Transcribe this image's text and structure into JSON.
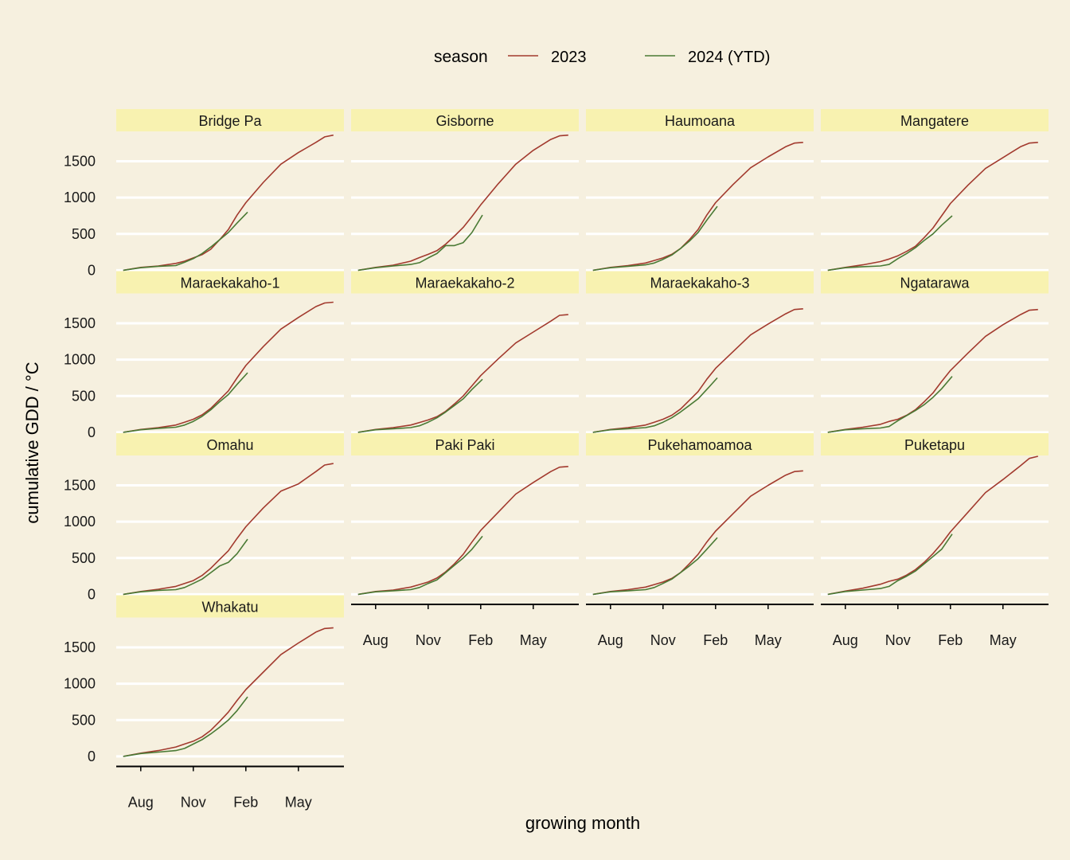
{
  "chart_data": {
    "type": "line",
    "title": "",
    "xlabel": "growing month",
    "ylabel": "cumulative GDD / °C",
    "legend": {
      "title": "season",
      "position": "top",
      "entries": [
        "2023",
        "2024 (YTD)"
      ]
    },
    "colors": {
      "2023": "#a23a2e",
      "2024 (YTD)": "#4a7a35",
      "background": "#f6f0df",
      "strip": "#f8f2b0",
      "grid": "#ffffff"
    },
    "grid": true,
    "x_ticks": [
      "Aug",
      "Nov",
      "Feb",
      "May"
    ],
    "y_ticks": [
      0,
      500,
      1000,
      1500
    ],
    "ylim": [
      -50,
      1900
    ],
    "x_units": "month offset from 1 Jul",
    "xlim": [
      -0.4,
      12.6
    ],
    "panels": [
      {
        "name": "Bridge Pa",
        "series": [
          {
            "name": "2023",
            "x": [
              0,
              1,
              2,
              3,
              3.5,
              4,
              4.5,
              5,
              5.5,
              6,
              6.5,
              7,
              8,
              9,
              10,
              11,
              11.5,
              12
            ],
            "y": [
              0,
              40,
              60,
              95,
              125,
              170,
              215,
              290,
              420,
              560,
              760,
              930,
              1210,
              1460,
              1620,
              1760,
              1835,
              1860
            ]
          },
          {
            "name": "2024 (YTD)",
            "x": [
              0,
              1,
              2,
              3,
              3.5,
              4,
              4.5,
              5,
              5.5,
              6,
              6.5,
              7.1
            ],
            "y": [
              0,
              35,
              55,
              65,
              110,
              160,
              230,
              320,
              420,
              520,
              650,
              800
            ]
          }
        ]
      },
      {
        "name": "Gisborne",
        "series": [
          {
            "name": "2023",
            "x": [
              0,
              1,
              2,
              3,
              3.5,
              4,
              4.5,
              5,
              5.5,
              6,
              6.5,
              7,
              8,
              9,
              10,
              11,
              11.5,
              12
            ],
            "y": [
              0,
              40,
              70,
              125,
              175,
              220,
              270,
              360,
              470,
              590,
              740,
              900,
              1190,
              1460,
              1650,
              1800,
              1850,
              1860
            ]
          },
          {
            "name": "2024 (YTD)",
            "x": [
              0,
              1,
              2,
              3,
              3.5,
              4,
              4.5,
              5,
              5.5,
              6,
              6.5,
              7.1
            ],
            "y": [
              0,
              35,
              60,
              80,
              105,
              170,
              230,
              340,
              340,
              380,
              520,
              760
            ]
          }
        ]
      },
      {
        "name": "Haumoana",
        "series": [
          {
            "name": "2023",
            "x": [
              0,
              1,
              2,
              3,
              3.5,
              4,
              4.5,
              5,
              5.5,
              6,
              6.5,
              7,
              8,
              9,
              10,
              11,
              11.5,
              12
            ],
            "y": [
              0,
              40,
              65,
              100,
              135,
              170,
              220,
              300,
              420,
              560,
              760,
              930,
              1180,
              1410,
              1560,
              1700,
              1750,
              1760
            ]
          },
          {
            "name": "2024 (YTD)",
            "x": [
              0,
              1,
              2,
              3,
              3.5,
              4,
              4.5,
              5,
              5.5,
              6,
              6.5,
              7.1
            ],
            "y": [
              0,
              35,
              55,
              75,
              100,
              150,
              210,
              300,
              400,
              520,
              690,
              880
            ]
          }
        ]
      },
      {
        "name": "Mangatere",
        "series": [
          {
            "name": "2023",
            "x": [
              0,
              1,
              2,
              3,
              3.5,
              4,
              4.5,
              5,
              5.5,
              6,
              6.5,
              7,
              8,
              9,
              10,
              11,
              11.5,
              12
            ],
            "y": [
              0,
              40,
              75,
              120,
              155,
              200,
              260,
              330,
              450,
              580,
              750,
              920,
              1170,
              1400,
              1550,
              1700,
              1750,
              1760
            ]
          },
          {
            "name": "2024 (YTD)",
            "x": [
              0,
              1,
              2,
              3,
              3.5,
              4,
              4.5,
              5,
              5.5,
              6,
              6.5,
              7.1
            ],
            "y": [
              0,
              35,
              50,
              60,
              80,
              160,
              230,
              310,
              410,
              500,
              620,
              750
            ]
          }
        ]
      },
      {
        "name": "Maraekakaho-1",
        "series": [
          {
            "name": "2023",
            "x": [
              0,
              1,
              2,
              3,
              3.5,
              4,
              4.5,
              5,
              5.5,
              6,
              6.5,
              7,
              8,
              9,
              10,
              11,
              11.5,
              12
            ],
            "y": [
              0,
              40,
              65,
              100,
              140,
              180,
              240,
              330,
              450,
              570,
              750,
              920,
              1180,
              1420,
              1580,
              1730,
              1780,
              1790
            ]
          },
          {
            "name": "2024 (YTD)",
            "x": [
              0,
              1,
              2,
              3,
              3.5,
              4,
              4.5,
              5,
              5.5,
              6,
              6.5,
              7.1
            ],
            "y": [
              0,
              35,
              55,
              70,
              100,
              150,
              220,
              310,
              420,
              520,
              660,
              820
            ]
          }
        ]
      },
      {
        "name": "Maraekakaho-2",
        "series": [
          {
            "name": "2023",
            "x": [
              0,
              1,
              2,
              3,
              3.5,
              4,
              4.5,
              5,
              5.5,
              6,
              6.5,
              7,
              8,
              9,
              10,
              11,
              11.5,
              12
            ],
            "y": [
              0,
              40,
              65,
              100,
              135,
              170,
              215,
              290,
              390,
              500,
              640,
              780,
              1010,
              1230,
              1380,
              1530,
              1610,
              1620
            ]
          },
          {
            "name": "2024 (YTD)",
            "x": [
              0,
              1,
              2,
              3,
              3.5,
              4,
              4.5,
              5,
              5.5,
              6,
              6.5,
              7.1
            ],
            "y": [
              0,
              35,
              50,
              65,
              90,
              140,
              200,
              280,
              370,
              460,
              590,
              730
            ]
          }
        ]
      },
      {
        "name": "Maraekakaho-3",
        "series": [
          {
            "name": "2023",
            "x": [
              0,
              1,
              2,
              3,
              3.5,
              4,
              4.5,
              5,
              5.5,
              6,
              6.5,
              7,
              8,
              9,
              10,
              11,
              11.5,
              12
            ],
            "y": [
              0,
              40,
              65,
              100,
              140,
              180,
              235,
              320,
              440,
              560,
              730,
              880,
              1110,
              1340,
              1490,
              1630,
              1690,
              1700
            ]
          },
          {
            "name": "2024 (YTD)",
            "x": [
              0,
              1,
              2,
              3,
              3.5,
              4,
              4.5,
              5,
              5.5,
              6,
              6.5,
              7.1
            ],
            "y": [
              0,
              35,
              50,
              65,
              90,
              140,
              200,
              280,
              370,
              460,
              590,
              750
            ]
          }
        ]
      },
      {
        "name": "Ngatarawa",
        "series": [
          {
            "name": "2023",
            "x": [
              0,
              1,
              2,
              3,
              3.5,
              4,
              4.5,
              5,
              5.5,
              6,
              6.5,
              7,
              8,
              9,
              10,
              11,
              11.5,
              12
            ],
            "y": [
              0,
              40,
              70,
              110,
              150,
              180,
              235,
              310,
              420,
              540,
              700,
              850,
              1090,
              1320,
              1480,
              1620,
              1680,
              1690
            ]
          },
          {
            "name": "2024 (YTD)",
            "x": [
              0,
              1,
              2,
              3,
              3.5,
              4,
              4.5,
              5,
              5.5,
              6,
              6.5,
              7.1
            ],
            "y": [
              0,
              35,
              50,
              60,
              80,
              160,
              230,
              300,
              380,
              480,
              600,
              770
            ]
          }
        ]
      },
      {
        "name": "Omahu",
        "series": [
          {
            "name": "2023",
            "x": [
              0,
              1,
              2,
              3,
              3.5,
              4,
              4.5,
              5,
              5.5,
              6,
              6.5,
              7,
              8,
              9,
              10,
              11,
              11.5,
              12
            ],
            "y": [
              0,
              40,
              70,
              110,
              150,
              190,
              260,
              360,
              480,
              600,
              770,
              930,
              1190,
              1420,
              1520,
              1690,
              1780,
              1800
            ]
          },
          {
            "name": "2024 (YTD)",
            "x": [
              0,
              1,
              2,
              3,
              3.5,
              4,
              4.5,
              5,
              5.5,
              6,
              6.5,
              7.1
            ],
            "y": [
              0,
              35,
              55,
              65,
              95,
              150,
              210,
              300,
              390,
              440,
              560,
              760
            ]
          }
        ]
      },
      {
        "name": "Paki Paki",
        "series": [
          {
            "name": "2023",
            "x": [
              0,
              1,
              2,
              3,
              3.5,
              4,
              4.5,
              5,
              5.5,
              6,
              6.5,
              7,
              8,
              9,
              10,
              11,
              11.5,
              12
            ],
            "y": [
              0,
              40,
              60,
              100,
              135,
              170,
              225,
              310,
              420,
              550,
              720,
              880,
              1130,
              1380,
              1540,
              1690,
              1750,
              1760
            ]
          },
          {
            "name": "2024 (YTD)",
            "x": [
              0,
              1,
              2,
              3,
              3.5,
              4,
              4.5,
              5,
              5.5,
              6,
              6.5,
              7.1
            ],
            "y": [
              0,
              35,
              50,
              65,
              95,
              150,
              200,
              300,
              400,
              500,
              620,
              800
            ]
          }
        ]
      },
      {
        "name": "Pukehamoamoa",
        "series": [
          {
            "name": "2023",
            "x": [
              0,
              1,
              2,
              3,
              3.5,
              4,
              4.5,
              5,
              5.5,
              6,
              6.5,
              7,
              8,
              9,
              10,
              11,
              11.5,
              12
            ],
            "y": [
              0,
              40,
              65,
              100,
              135,
              170,
              220,
              300,
              420,
              550,
              720,
              870,
              1110,
              1350,
              1500,
              1640,
              1690,
              1700
            ]
          },
          {
            "name": "2024 (YTD)",
            "x": [
              0,
              1,
              2,
              3,
              3.5,
              4,
              4.5,
              5,
              5.5,
              6,
              6.5,
              7.1
            ],
            "y": [
              0,
              35,
              50,
              65,
              95,
              150,
              210,
              300,
              390,
              490,
              620,
              780
            ]
          }
        ]
      },
      {
        "name": "Puketapu",
        "series": [
          {
            "name": "2023",
            "x": [
              0,
              1,
              2,
              3,
              3.5,
              4,
              4.5,
              5,
              5.5,
              6,
              6.5,
              7,
              8,
              9,
              10,
              11,
              11.5,
              12
            ],
            "y": [
              0,
              45,
              85,
              140,
              180,
              210,
              265,
              340,
              440,
              560,
              700,
              860,
              1130,
              1400,
              1580,
              1770,
              1870,
              1900
            ]
          },
          {
            "name": "2024 (YTD)",
            "x": [
              0,
              1,
              2,
              3,
              3.5,
              4,
              4.5,
              5,
              5.5,
              6,
              6.5,
              7.1
            ],
            "y": [
              0,
              40,
              60,
              80,
              110,
              190,
              250,
              320,
              420,
              520,
              620,
              830
            ]
          }
        ]
      },
      {
        "name": "Whakatu",
        "series": [
          {
            "name": "2023",
            "x": [
              0,
              1,
              2,
              3,
              3.5,
              4,
              4.5,
              5,
              5.5,
              6,
              6.5,
              7,
              8,
              9,
              10,
              11,
              11.5,
              12
            ],
            "y": [
              0,
              45,
              80,
              130,
              170,
              210,
              270,
              360,
              480,
              610,
              770,
              920,
              1160,
              1400,
              1560,
              1710,
              1760,
              1770
            ]
          },
          {
            "name": "2024 (YTD)",
            "x": [
              0,
              1,
              2,
              3,
              3.5,
              4,
              4.5,
              5,
              5.5,
              6,
              6.5,
              7.1
            ],
            "y": [
              0,
              40,
              60,
              80,
              110,
              170,
              230,
              310,
              400,
              500,
              630,
              820
            ]
          }
        ]
      }
    ]
  }
}
